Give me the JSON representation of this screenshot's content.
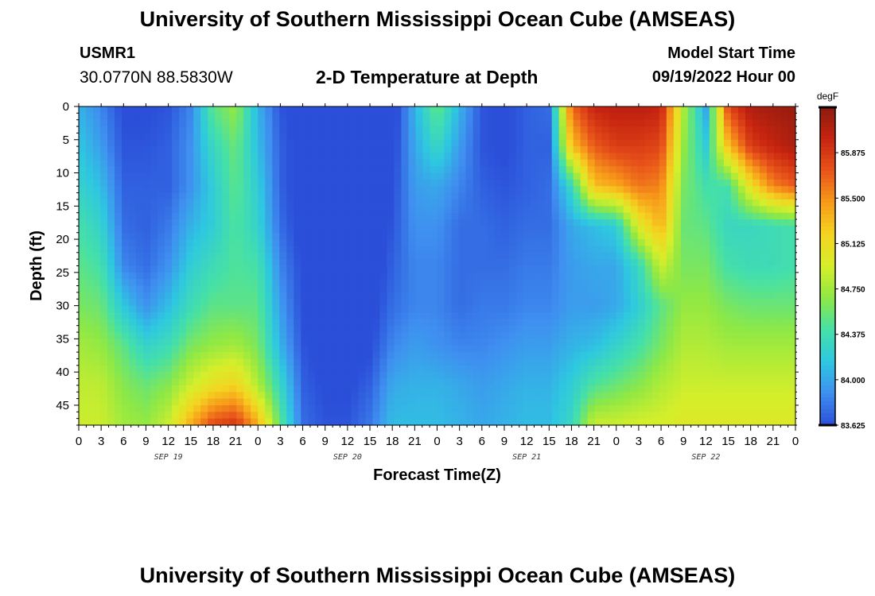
{
  "header": {
    "title": "University of Southern Mississippi Ocean Cube (AMSEAS)",
    "station": "USMR1",
    "coords": "30.0770N  88.5830W",
    "subtitle": "2-D Temperature at Depth",
    "start_label": "Model Start Time",
    "start_value": "09/19/2022 Hour 00"
  },
  "footer": {
    "title_repeat": "University of Southern Mississippi Ocean Cube (AMSEAS)"
  },
  "chart_data": {
    "type": "heatmap",
    "title": "2-D Temperature at Depth",
    "xlabel": "Forecast Time(Z)",
    "ylabel": "Depth (ft)",
    "x_tick_labels": [
      "0",
      "3",
      "6",
      "9",
      "12",
      "15",
      "18",
      "21",
      "0",
      "3",
      "6",
      "9",
      "12",
      "15",
      "18",
      "21",
      "0",
      "3",
      "6",
      "9",
      "12",
      "15",
      "18",
      "21",
      "0",
      "3",
      "6",
      "9",
      "12",
      "15",
      "18",
      "21",
      "0"
    ],
    "date_labels": [
      "SEP 19",
      "SEP 20",
      "SEP 21",
      "SEP 22"
    ],
    "y_ticks": [
      0,
      5,
      10,
      15,
      20,
      25,
      30,
      35,
      40,
      45
    ],
    "xlim_hours": [
      0,
      96
    ],
    "ylim_ft": [
      0,
      48
    ],
    "colorbar": {
      "units": "degF",
      "ticks": [
        "85.875",
        "85.500",
        "85.125",
        "84.750",
        "84.375",
        "84.000",
        "83.625"
      ],
      "range": [
        83.625,
        86.25
      ],
      "colors": [
        "#2b4fd9",
        "#3f8ff0",
        "#2ec8e0",
        "#45e0a8",
        "#8ee845",
        "#d6ee2a",
        "#f4d421",
        "#f79b1a",
        "#e8541a",
        "#c72410",
        "#8a1a0d"
      ]
    },
    "profiles": {
      "depths_ft": [
        0,
        6,
        12,
        18,
        24,
        30,
        36,
        42,
        48
      ],
      "times_hours": [
        0,
        3,
        6,
        9,
        12,
        15,
        18,
        21,
        24,
        27,
        30,
        33,
        36,
        39,
        42,
        45,
        48,
        51,
        54,
        57,
        60,
        63,
        66,
        69,
        72,
        75,
        78,
        81,
        84,
        87,
        90,
        93,
        96
      ],
      "temps_degF": [
        [
          84.05,
          84.15,
          84.25,
          84.4,
          84.5,
          84.6,
          84.75,
          84.85,
          84.9
        ],
        [
          83.85,
          83.95,
          84.1,
          84.25,
          84.4,
          84.55,
          84.7,
          84.85,
          84.9
        ],
        [
          83.6,
          83.65,
          83.7,
          83.75,
          83.85,
          84.15,
          84.5,
          84.65,
          84.75
        ],
        [
          83.6,
          83.65,
          83.7,
          83.7,
          83.75,
          83.9,
          84.25,
          84.55,
          84.7
        ],
        [
          83.65,
          83.7,
          83.7,
          83.8,
          83.9,
          84.1,
          84.35,
          84.65,
          84.9
        ],
        [
          83.85,
          83.9,
          83.9,
          84.05,
          84.2,
          84.35,
          84.6,
          84.9,
          85.4
        ],
        [
          84.5,
          84.3,
          84.2,
          84.2,
          84.35,
          84.5,
          84.7,
          85.1,
          85.8
        ],
        [
          84.7,
          84.55,
          84.5,
          84.45,
          84.45,
          84.5,
          84.75,
          85.2,
          85.9
        ],
        [
          84.05,
          84.1,
          84.2,
          84.25,
          84.4,
          84.5,
          84.6,
          84.8,
          85.4
        ],
        [
          83.65,
          83.7,
          83.7,
          83.75,
          83.85,
          83.95,
          84.05,
          84.3,
          84.5
        ],
        [
          83.55,
          83.55,
          83.55,
          83.55,
          83.6,
          83.6,
          83.65,
          83.7,
          83.75
        ],
        [
          83.5,
          83.5,
          83.5,
          83.5,
          83.5,
          83.55,
          83.55,
          83.6,
          83.65
        ],
        [
          83.5,
          83.5,
          83.5,
          83.5,
          83.5,
          83.5,
          83.55,
          83.6,
          83.65
        ],
        [
          83.4,
          83.45,
          83.5,
          83.5,
          83.5,
          83.55,
          83.6,
          83.7,
          83.8
        ],
        [
          83.5,
          83.55,
          83.6,
          83.65,
          83.7,
          83.75,
          83.85,
          84.0,
          84.1
        ],
        [
          84.05,
          84.0,
          83.95,
          83.9,
          83.85,
          83.85,
          83.95,
          84.05,
          84.1
        ],
        [
          84.55,
          84.3,
          84.0,
          83.9,
          83.85,
          83.85,
          83.9,
          84.05,
          84.1
        ],
        [
          84.05,
          83.95,
          83.85,
          83.75,
          83.75,
          83.75,
          83.85,
          84.0,
          84.05
        ],
        [
          83.65,
          83.65,
          83.7,
          83.75,
          83.75,
          83.8,
          83.85,
          83.95,
          84.0
        ],
        [
          83.6,
          83.6,
          83.65,
          83.7,
          83.75,
          83.8,
          83.9,
          84.0,
          84.05
        ],
        [
          83.7,
          83.7,
          83.7,
          83.75,
          83.8,
          83.85,
          83.95,
          84.05,
          84.1
        ],
        [
          83.75,
          83.7,
          83.75,
          83.75,
          83.8,
          83.85,
          83.95,
          84.05,
          84.1
        ],
        [
          85.65,
          85.3,
          84.3,
          84.0,
          83.95,
          83.95,
          84.05,
          84.2,
          84.3
        ],
        [
          86.0,
          85.7,
          85.3,
          84.1,
          84.0,
          83.95,
          84.1,
          84.45,
          84.9
        ],
        [
          86.05,
          85.85,
          85.4,
          84.2,
          84.0,
          84.0,
          84.25,
          84.55,
          84.9
        ],
        [
          86.05,
          85.85,
          85.6,
          85.0,
          84.3,
          84.2,
          84.4,
          84.65,
          84.95
        ],
        [
          86.0,
          85.8,
          85.55,
          85.35,
          84.9,
          84.5,
          84.6,
          84.8,
          84.95
        ],
        [
          84.8,
          84.7,
          84.6,
          84.55,
          84.6,
          84.7,
          84.8,
          84.9,
          85.0
        ],
        [
          84.0,
          84.2,
          84.4,
          84.5,
          84.6,
          84.7,
          84.8,
          84.9,
          85.0
        ],
        [
          85.8,
          85.3,
          84.4,
          84.3,
          84.4,
          84.6,
          84.75,
          84.9,
          85.0
        ],
        [
          86.1,
          85.85,
          85.1,
          84.3,
          84.35,
          84.55,
          84.75,
          84.9,
          85.0
        ],
        [
          86.15,
          86.0,
          85.55,
          84.35,
          84.35,
          84.55,
          84.75,
          84.9,
          85.0
        ],
        [
          86.2,
          86.1,
          85.7,
          84.4,
          84.4,
          84.55,
          84.75,
          84.9,
          85.0
        ]
      ]
    }
  }
}
